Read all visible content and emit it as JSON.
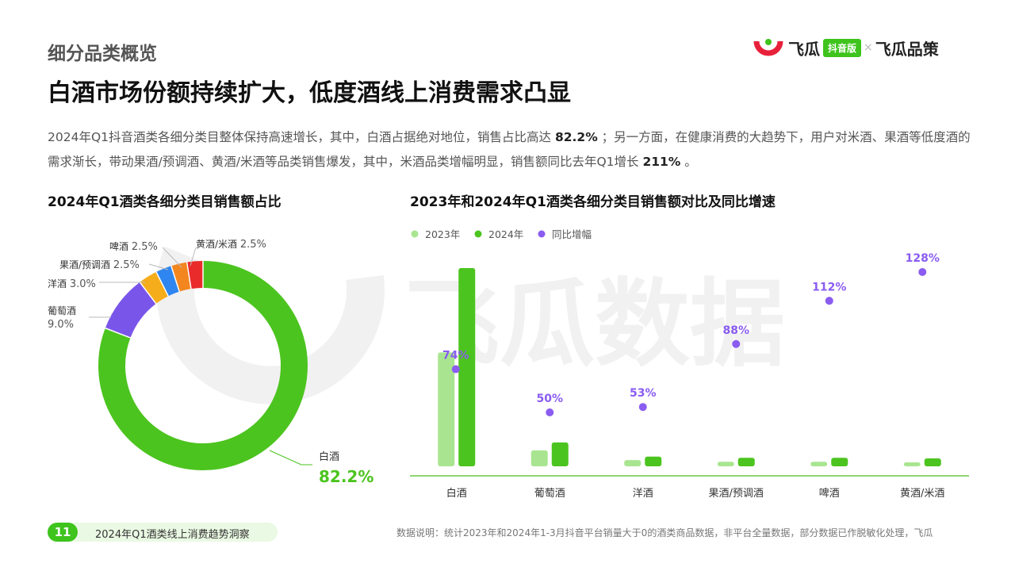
{
  "header": {
    "section_label": "细分品类概览",
    "headline": "白酒市场份额持续扩大，低度酒线上消费需求凸显"
  },
  "brand": {
    "name_1": "飞瓜",
    "badge": "抖音版",
    "separator": "×",
    "name_2": "飞瓜品策",
    "accent_color": "#3ec41c",
    "logo_red": "#e8213a"
  },
  "summary": {
    "part_1": "2024年Q1抖音酒类各细分类目整体保持高速增长，其中，白酒占据绝对地位，销售占比高达 ",
    "highlight_1": "82.2%",
    "part_2": " ；另一方面，在健康消费的大趋势下，用户对米酒、果酒等低度酒的需求渐长，带动果酒/预调酒、黄酒/米酒等品类销售爆发，其中，米酒品类增幅明显，销售额同比去年Q1增长 ",
    "highlight_2": "211%",
    "part_3": " 。"
  },
  "watermark": {
    "text": "飞瓜数据"
  },
  "chart_data": [
    {
      "type": "pie",
      "title": "2024年Q1酒类各细分类目销售额占比",
      "style": "donut",
      "slices": [
        {
          "label": "白酒",
          "value": 82.2,
          "display": "82.2%",
          "color": "#4cc41f"
        },
        {
          "label": "葡萄酒",
          "value": 9.0,
          "display": "9.0%",
          "color": "#7a55ea"
        },
        {
          "label": "洋酒",
          "value": 3.0,
          "display": "3.0%",
          "color": "#f5ad1b"
        },
        {
          "label": "果酒/预调酒",
          "value": 2.5,
          "display": "2.5%",
          "color": "#2f86f0"
        },
        {
          "label": "啤酒",
          "value": 2.5,
          "display": "2.5%",
          "color": "#f3861f"
        },
        {
          "label": "黄酒/米酒",
          "value": 2.5,
          "display": "2.5%",
          "color": "#e92b2b"
        }
      ]
    },
    {
      "type": "bar",
      "title": "2023年和2024年Q1酒类各细分类目销售额对比及同比增速",
      "categories": [
        "白酒",
        "葡萄酒",
        "洋酒",
        "果酒/预调酒",
        "啤酒",
        "黄酒/米酒"
      ],
      "series": [
        {
          "name": "2023年",
          "kind": "bar",
          "color": "#a9e590",
          "values": [
            100,
            14,
            5.5,
            4.0,
            4.0,
            3.5
          ]
        },
        {
          "name": "2024年",
          "kind": "bar",
          "color": "#4cc41f",
          "values": [
            174,
            21,
            8.5,
            7.5,
            7.5,
            7.0
          ]
        },
        {
          "name": "同比增幅",
          "kind": "scatter",
          "color": "#8a5cf0",
          "unit": "%",
          "values": [
            74,
            50,
            53,
            88,
            112,
            128
          ]
        }
      ],
      "legend_position": "top-left",
      "grid": false
    }
  ],
  "footer": {
    "page_number": "11",
    "report_title": "2024年Q1酒类线上消费趋势洞察",
    "note": "数据说明：统计2023年和2024年1-3月抖音平台销量大于0的酒类商品数据，非平台全量数据，部分数据已作脱敏化处理，飞瓜"
  }
}
